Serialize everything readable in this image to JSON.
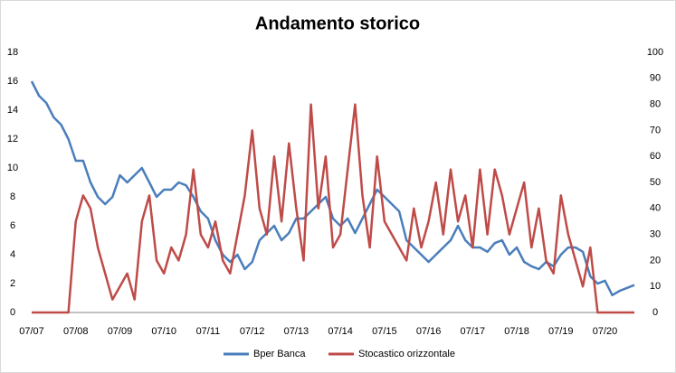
{
  "chart_data": {
    "type": "line",
    "title": "Andamento storico",
    "categories": [
      "07/07",
      null,
      null,
      null,
      null,
      null,
      "07/08",
      null,
      null,
      null,
      null,
      null,
      "07/09",
      null,
      null,
      null,
      null,
      null,
      "07/10",
      null,
      null,
      null,
      null,
      null,
      "07/11",
      null,
      null,
      null,
      null,
      null,
      "07/12",
      null,
      null,
      null,
      null,
      null,
      "07/13",
      null,
      null,
      null,
      null,
      null,
      "07/14",
      null,
      null,
      null,
      null,
      null,
      "07/15",
      null,
      null,
      null,
      null,
      null,
      "07/16",
      null,
      null,
      null,
      null,
      null,
      "07/17",
      null,
      null,
      null,
      null,
      null,
      "07/18",
      null,
      null,
      null,
      null,
      null,
      "07/19",
      null,
      null,
      null,
      null,
      null,
      "07/20",
      null,
      null,
      null,
      null
    ],
    "series": [
      {
        "name": "Bper Banca",
        "color": "#4a7ebb",
        "values": [
          16,
          15,
          14.5,
          13.5,
          13,
          12,
          10.5,
          10.5,
          9,
          8,
          7.5,
          8,
          9.5,
          9,
          9.5,
          10,
          9,
          8,
          8.5,
          8.5,
          9,
          8.8,
          8,
          7,
          6.5,
          5,
          4,
          3.5,
          4,
          3,
          3.5,
          5,
          5.5,
          6,
          5,
          5.5,
          6.5,
          6.5,
          7,
          7.5,
          8,
          6.5,
          6,
          6.5,
          5.5,
          6.5,
          7.5,
          8.5,
          8,
          7.5,
          7,
          5,
          4.5,
          4,
          3.5,
          4,
          4.5,
          5,
          6,
          5,
          4.5,
          4.5,
          4.2,
          4.8,
          5,
          4,
          4.5,
          3.5,
          3.2,
          3,
          3.5,
          3.2,
          4,
          4.5,
          4.5,
          4.2,
          2.5,
          2,
          2.2,
          1.2,
          1.5,
          1.7,
          1.9
        ]
      },
      {
        "name": "Stocastico orizzontale",
        "color": "#be4b48",
        "axis": "y2",
        "values": [
          0,
          0,
          0,
          0,
          0,
          0,
          35,
          45,
          40,
          25,
          15,
          5,
          10,
          15,
          5,
          35,
          45,
          20,
          15,
          25,
          20,
          30,
          55,
          30,
          25,
          35,
          20,
          15,
          30,
          45,
          70,
          40,
          30,
          60,
          35,
          65,
          40,
          20,
          80,
          40,
          60,
          25,
          30,
          55,
          80,
          45,
          25,
          60,
          35,
          30,
          25,
          20,
          40,
          25,
          35,
          50,
          30,
          55,
          35,
          45,
          25,
          55,
          30,
          55,
          45,
          30,
          40,
          50,
          25,
          40,
          20,
          15,
          45,
          30,
          20,
          10,
          25,
          0,
          0,
          0,
          0,
          0,
          0
        ]
      }
    ],
    "ylim": [
      0,
      18
    ],
    "yticks": [
      0,
      2,
      4,
      6,
      8,
      10,
      12,
      14,
      16,
      18
    ],
    "y2lim": [
      0,
      100
    ],
    "y2ticks": [
      0,
      10,
      20,
      30,
      40,
      50,
      60,
      70,
      80,
      90,
      100
    ],
    "grid": false,
    "legend": "bottom"
  }
}
